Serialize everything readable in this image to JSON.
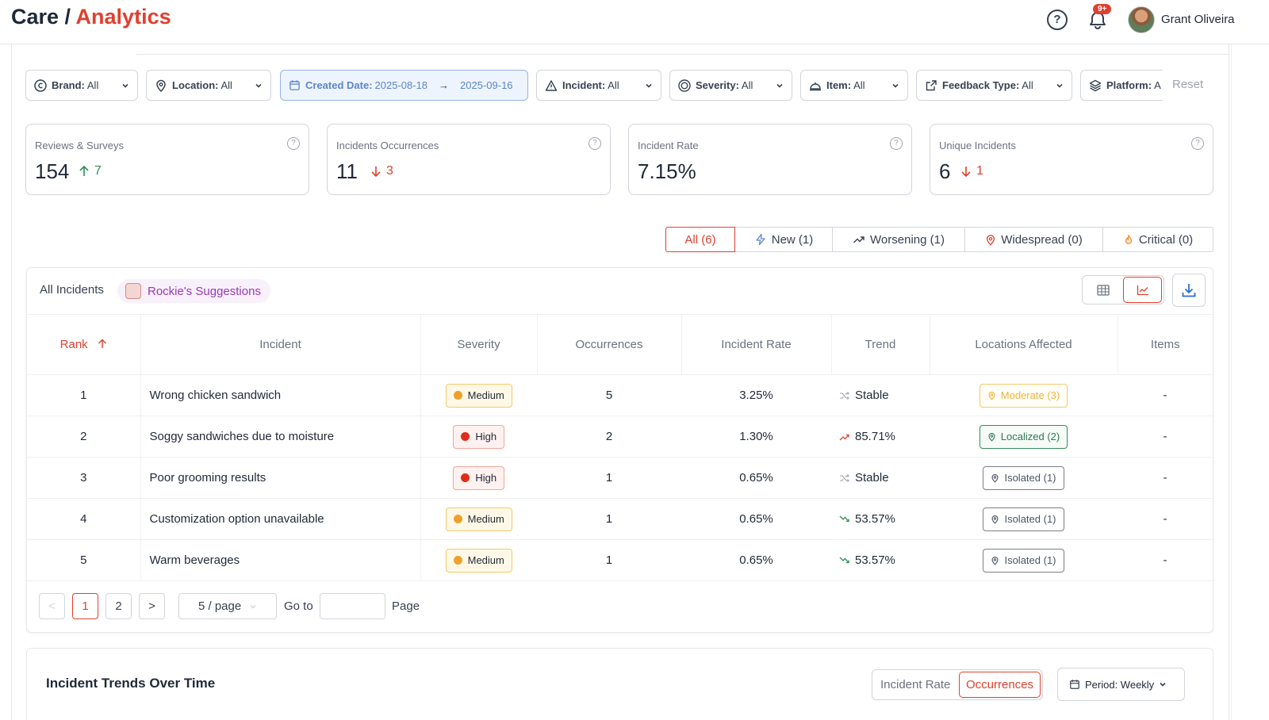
{
  "header": {
    "title_prefix": "Care /",
    "title_accent": "Analytics",
    "help_label": "?",
    "notification_badge": "9+",
    "user_name": "Grant Oliveira"
  },
  "filters": {
    "brand": {
      "label": "Brand:",
      "value": "All"
    },
    "location": {
      "label": "Location:",
      "value": "All"
    },
    "created_date": {
      "label": "Created Date:",
      "start": "2025-08-18",
      "arrow": "→",
      "end": "2025-09-16"
    },
    "incident": {
      "label": "Incident:",
      "value": "All"
    },
    "severity": {
      "label": "Severity:",
      "value": "All"
    },
    "item": {
      "label": "Item:",
      "value": "All"
    },
    "feedback_type": {
      "label": "Feedback Type:",
      "value": "All"
    },
    "platform": {
      "label": "Platform:",
      "value": "A"
    },
    "reset_label": "Reset"
  },
  "summary_cards": [
    {
      "label": "Reviews & Surveys",
      "value": "154",
      "delta": "7",
      "direction": "up"
    },
    {
      "label": "Incidents Occurrences",
      "value": "11",
      "delta": "3",
      "direction": "down"
    },
    {
      "label": "Incident Rate",
      "value": "7.15%",
      "delta": "",
      "direction": "none"
    },
    {
      "label": "Unique Incidents",
      "value": "6",
      "delta": "1",
      "direction": "down"
    }
  ],
  "segments": {
    "all": "All (6)",
    "new": "New (1)",
    "worsening": "Worsening (1)",
    "widespread": "Widespread (0)",
    "critical": "Critical (0)"
  },
  "panel": {
    "tab_all": "All Incidents",
    "tab_rockie": "Rockie's Suggestions"
  },
  "table": {
    "columns": {
      "rank": "Rank",
      "incident": "Incident",
      "severity": "Severity",
      "occurrences": "Occurrences",
      "rate": "Incident Rate",
      "trend": "Trend",
      "locations": "Locations Affected",
      "items": "Items"
    },
    "rows": [
      {
        "rank": "1",
        "incident": "Wrong chicken sandwich",
        "severity": "Medium",
        "occurrences": "5",
        "rate": "3.25%",
        "trend": "Stable",
        "locations": "Moderate (3)",
        "items": "-"
      },
      {
        "rank": "2",
        "incident": "Soggy sandwiches due to moisture",
        "severity": "High",
        "occurrences": "2",
        "rate": "1.30%",
        "trend": "85.71%",
        "locations": "Localized (2)",
        "items": "-"
      },
      {
        "rank": "3",
        "incident": "Poor grooming results",
        "severity": "High",
        "occurrences": "1",
        "rate": "0.65%",
        "trend": "Stable",
        "locations": "Isolated (1)",
        "items": "-"
      },
      {
        "rank": "4",
        "incident": "Customization option unavailable",
        "severity": "Medium",
        "occurrences": "1",
        "rate": "0.65%",
        "trend": "53.57%",
        "locations": "Isolated (1)",
        "items": "-"
      },
      {
        "rank": "5",
        "incident": "Warm beverages",
        "severity": "Medium",
        "occurrences": "1",
        "rate": "0.65%",
        "trend": "53.57%",
        "locations": "Isolated (1)",
        "items": "-"
      }
    ]
  },
  "pagination": {
    "prev": "<",
    "page1": "1",
    "page2": "2",
    "next": ">",
    "page_size": "5 / page",
    "goto_label": "Go to",
    "goto_value": "",
    "page_label": "Page"
  },
  "trends": {
    "title": "Incident Trends Over Time",
    "metric_rate": "Incident Rate",
    "metric_occurrences": "Occurrences",
    "period_label": "Period: Weekly"
  },
  "colors": {
    "accent": "#e0402f",
    "up": "#2e8b57",
    "down": "#e0402f",
    "medium": "#f0a02a",
    "high": "#e02d1a"
  }
}
